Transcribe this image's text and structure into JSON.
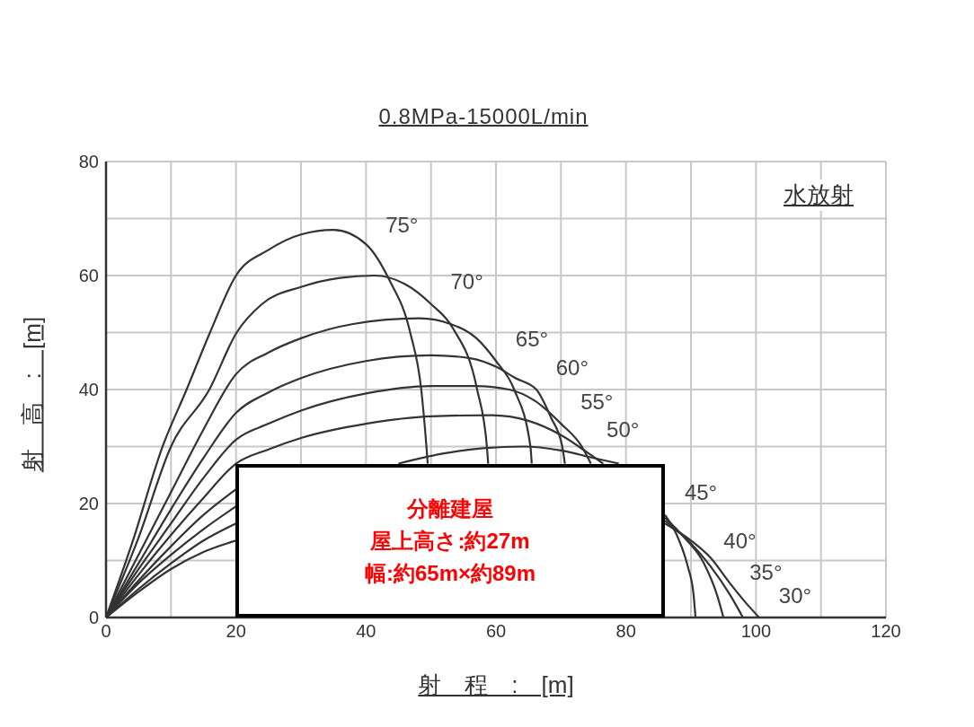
{
  "chart_data": {
    "type": "line",
    "title": "0.8MPa-15000L/min",
    "xlabel": "射　程　:　[m]",
    "ylabel": "射　高　:　[m]",
    "xlim": [
      0,
      120
    ],
    "ylim": [
      0,
      80
    ],
    "xticks": [
      0,
      {
        "value": 10,
        "label": null
      },
      20,
      {
        "value": 30,
        "label": null
      },
      40,
      {
        "value": 50,
        "label": null
      },
      60,
      {
        "value": 70,
        "label": null
      },
      80,
      {
        "value": 90,
        "label": null
      },
      100,
      {
        "value": 110,
        "label": null
      },
      120
    ],
    "yticks": [
      0,
      {
        "value": 10,
        "label": null
      },
      20,
      {
        "value": 30,
        "label": null
      },
      40,
      {
        "value": 50,
        "label": null
      },
      60,
      {
        "value": 70,
        "label": null
      },
      80
    ],
    "grid": true,
    "marker": "none",
    "line_style": "solid",
    "series": [
      {
        "color": "#333333",
        "x": [
          0,
          4,
          8.7,
          12.4,
          16,
          20,
          25,
          30,
          35,
          40,
          43.6,
          46.8,
          48.5,
          49.3,
          49.5
        ],
        "values": [
          0,
          13,
          30,
          40,
          50,
          60,
          64.5,
          67.2,
          68,
          65.5,
          59.2,
          50,
          40,
          30,
          27
        ]
      },
      {
        "color": "#333333",
        "x": [
          0,
          5,
          10,
          15.9,
          20.1,
          24,
          30,
          36,
          41.3,
          46,
          50,
          53.4,
          57.1,
          58.6,
          58.8
        ],
        "values": [
          0,
          14,
          30,
          40,
          50,
          55,
          58,
          59.6,
          60,
          58.5,
          55,
          50.7,
          40,
          30,
          27
        ]
      },
      {
        "color": "#333333",
        "x": [
          0,
          5,
          10,
          15,
          20,
          25,
          30,
          38,
          48.2,
          53,
          57,
          60,
          62.8,
          65.3,
          65.5
        ],
        "values": [
          0,
          11,
          22,
          33,
          42.7,
          46.5,
          49,
          51.5,
          52.5,
          51.5,
          49,
          45,
          40,
          30,
          27
        ]
      },
      {
        "color": "#333333",
        "x": [
          0,
          5,
          10,
          15,
          20,
          25,
          30,
          40,
          50,
          56,
          60,
          63,
          66.2,
          68.5,
          70.2,
          70.6
        ],
        "values": [
          0,
          9.5,
          19,
          28,
          35.9,
          39.5,
          42,
          45,
          46,
          45.5,
          44,
          42,
          40,
          35,
          30,
          27
        ]
      },
      {
        "color": "#333333",
        "x": [
          0,
          5,
          10,
          15,
          20,
          25,
          30,
          40,
          50,
          56.8,
          62,
          66,
          70,
          73.2,
          74.6
        ],
        "values": [
          0,
          8.5,
          16.5,
          24.5,
          31.2,
          34,
          36.3,
          39.3,
          40.6,
          40.6,
          40,
          38,
          34,
          30,
          27
        ]
      },
      {
        "color": "#333333",
        "x": [
          0,
          5,
          10,
          15,
          20,
          25,
          30,
          40,
          50,
          59.3,
          65,
          70,
          74,
          76.5
        ],
        "values": [
          0,
          7.5,
          14.5,
          21,
          27,
          29.5,
          31.5,
          34,
          35.3,
          35.5,
          34.5,
          32,
          29,
          27
        ]
      },
      {
        "color": "#333333",
        "x": [
          0,
          5,
          10,
          15,
          20,
          32,
          45,
          52,
          58,
          64.3,
          70,
          75,
          78.9,
          82,
          86,
          88,
          89.5,
          90.4,
          90.7
        ],
        "values": [
          0,
          6.5,
          12.5,
          18,
          22.5,
          null,
          27,
          28.8,
          29.7,
          30,
          29.3,
          28,
          27,
          null,
          18,
          14,
          9,
          4,
          0
        ]
      },
      {
        "color": "#333333",
        "x": [
          0,
          5,
          10,
          15,
          20,
          50,
          86,
          89,
          92,
          94,
          95
        ],
        "values": [
          0,
          6,
          11,
          15.5,
          19.5,
          null,
          17.5,
          14,
          9.5,
          4,
          0
        ]
      },
      {
        "color": "#333333",
        "x": [
          0,
          5,
          10,
          15,
          20,
          50,
          86,
          90,
          93,
          96,
          98
        ],
        "values": [
          0,
          5,
          9.5,
          13.5,
          16.5,
          null,
          17,
          13,
          9,
          4,
          0
        ]
      },
      {
        "color": "#333333",
        "x": [
          0,
          5,
          10,
          15,
          20,
          50,
          86,
          90,
          93,
          96,
          98.5,
          100.5
        ],
        "values": [
          0,
          4.5,
          8.5,
          11.5,
          13.5,
          null,
          16.5,
          13.5,
          10.5,
          6,
          2.5,
          0
        ]
      }
    ],
    "annotations": [
      "水放射",
      {
        "text": "75°",
        "x": 40,
        "y": 65
      },
      {
        "text": "70°",
        "x": 50,
        "y": 55
      },
      {
        "text": "65°",
        "x": 60,
        "y": 45
      },
      {
        "text": "60°",
        "x": 66.2,
        "y": 40
      },
      {
        "text": "55°",
        "x": 70,
        "y": 34
      },
      {
        "text": "50°",
        "x": 74,
        "y": 29
      },
      {
        "text": "45°",
        "x": 86,
        "y": 18
      },
      {
        "text": "40°",
        "x": 92,
        "y": 9.5
      },
      {
        "text": "35°",
        "x": 96,
        "y": 4
      },
      {
        "text": "30°",
        "x": 100.5,
        "y": 0
      },
      "分離建屋",
      "屋上高さ:約27m",
      "幅:約65m×約89m"
    ]
  }
}
